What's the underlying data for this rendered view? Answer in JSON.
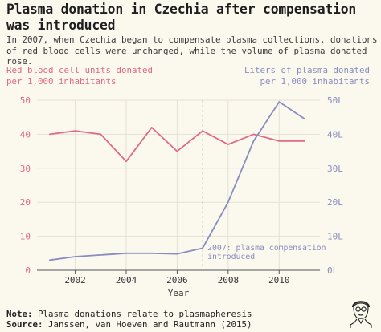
{
  "header": {
    "title": "Plasma donation in Czechia after compensation was introduced",
    "subtitle": "In 2007, when Czechia began to compensate plasma collections, donations of red blood cells were unchanged, while the volume of plasma donated rose."
  },
  "footer": {
    "note_label": "Note:",
    "note_text": "Plasma donations relate to plasmapheresis",
    "source_label": "Source:",
    "source_text": "Janssen, van Hoeven and Rautmann (2015)"
  },
  "colors": {
    "red_series": "#e06a87",
    "plasma_series": "#8a8cc0",
    "background": "#fbf8ee",
    "grid": "#e4e1d6"
  },
  "chart_data": {
    "type": "line",
    "xlabel": "Year",
    "x": [
      2001,
      2002,
      2003,
      2004,
      2005,
      2006,
      2007,
      2008,
      2009,
      2010,
      2011
    ],
    "xlim": [
      2000.5,
      2011.6
    ],
    "xticks": [
      "2002",
      "2004",
      "2006",
      "2008",
      "2010"
    ],
    "left_axis": {
      "label": "Red blood cell units donated\nper 1,000 inhabitants",
      "ylim": [
        0,
        50
      ],
      "ticks": [
        "0",
        "10",
        "20",
        "30",
        "40",
        "50"
      ]
    },
    "right_axis": {
      "label": "Liters of plasma donated\nper 1,000 inhabitants",
      "ylim": [
        0,
        50
      ],
      "ticks": [
        "0L",
        "10L",
        "20L",
        "30L",
        "40L",
        "50L"
      ]
    },
    "series": [
      {
        "axis": "left",
        "values": [
          40,
          41,
          40,
          32,
          42,
          35,
          41,
          37,
          40,
          38,
          38
        ]
      },
      {
        "axis": "right",
        "values": [
          3,
          4,
          4.5,
          5,
          5,
          4.8,
          6.5,
          20,
          38,
          49.5,
          44.5
        ]
      }
    ],
    "annotation": {
      "x": 2007,
      "text": "2007: plasma compensation\nintroduced"
    },
    "grid": true,
    "legend": "none"
  }
}
